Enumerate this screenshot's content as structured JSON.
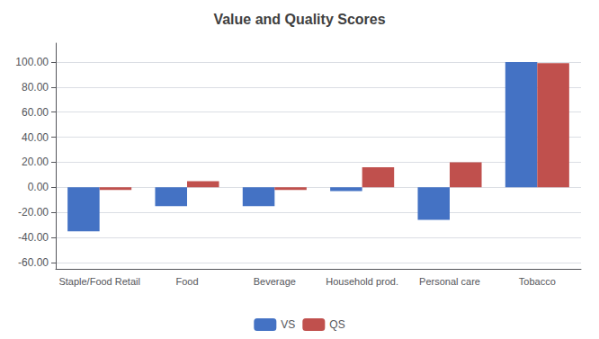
{
  "chart_data": {
    "type": "bar",
    "title": "Value and Quality Scores",
    "categories": [
      "Staple/Food Retail",
      "Food",
      "Beverage",
      "Household prod.",
      "Personal care",
      "Tobacco"
    ],
    "series": [
      {
        "name": "VS",
        "color": "#4472C4",
        "values": [
          -35,
          -15,
          -15,
          -3,
          -26,
          100
        ]
      },
      {
        "name": "QS",
        "color": "#C0504D",
        "values": [
          -2,
          5,
          -2,
          16,
          20,
          99
        ]
      }
    ],
    "ylim": [
      -65,
      115
    ],
    "yticks": [
      {
        "value": -60,
        "label": "-60.00"
      },
      {
        "value": -40,
        "label": "-40.00"
      },
      {
        "value": -20,
        "label": "-20.00"
      },
      {
        "value": 0,
        "label": "0.00"
      },
      {
        "value": 20,
        "label": "20.00"
      },
      {
        "value": 40,
        "label": "40.00"
      },
      {
        "value": 60,
        "label": "60.00"
      },
      {
        "value": 80,
        "label": "80.00"
      },
      {
        "value": 100,
        "label": "100.00"
      }
    ],
    "grid": true,
    "legend": "bottom"
  }
}
